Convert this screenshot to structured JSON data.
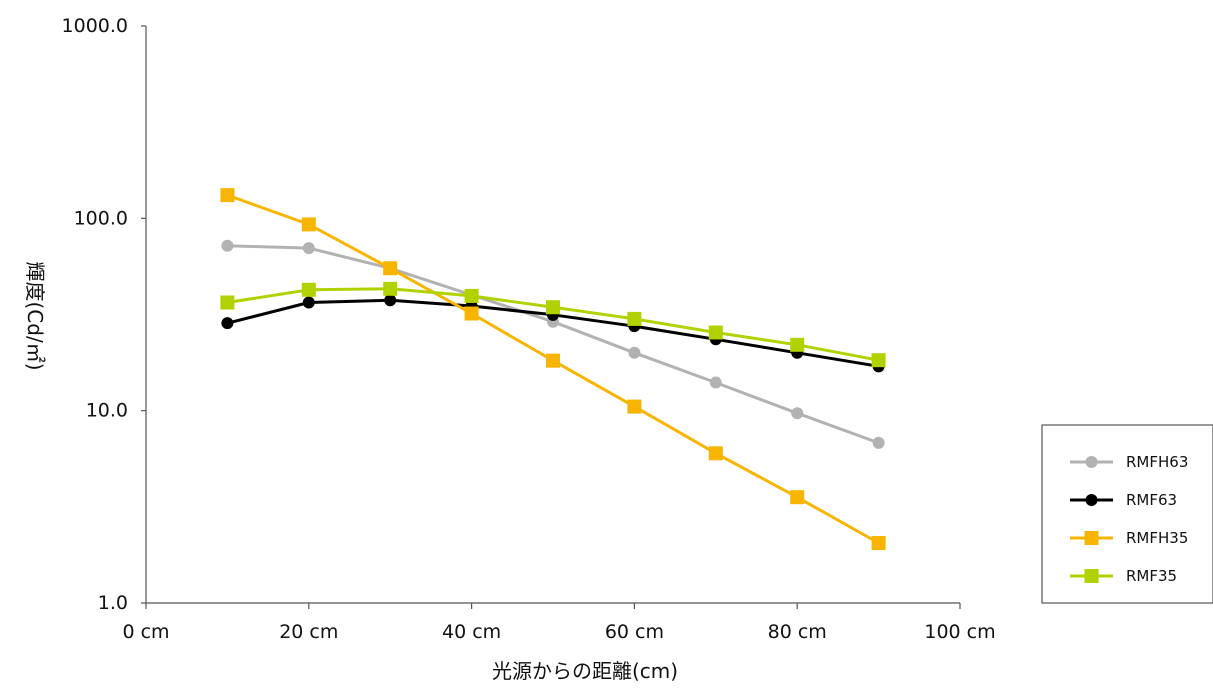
{
  "chart_data": {
    "type": "line",
    "title": "",
    "xlabel": "光源からの距離(cm)",
    "ylabel": "輝度(Cd/㎡)",
    "xlim": [
      0,
      100
    ],
    "ylim": [
      1,
      1000
    ],
    "y_scale": "log",
    "x_ticks": [
      "0 cm",
      "20 cm",
      "40 cm",
      "60 cm",
      "80 cm",
      "100 cm"
    ],
    "x_tick_values": [
      0,
      20,
      40,
      60,
      80,
      100
    ],
    "y_ticks": [
      "1.0",
      "10.0",
      "100.0",
      "1000.0"
    ],
    "y_tick_values": [
      1,
      10,
      100,
      1000
    ],
    "grid": false,
    "legend_position": "right",
    "x": [
      10,
      20,
      30,
      40,
      50,
      60,
      70,
      80,
      90
    ],
    "series": [
      {
        "name": "RMFH63",
        "color": "#b2b2b2",
        "marker": "circle",
        "values": [
          72,
          70,
          55,
          40,
          29,
          20,
          14,
          9.7,
          6.8
        ]
      },
      {
        "name": "RMF63",
        "color": "#000000",
        "marker": "circle",
        "values": [
          28.5,
          36.5,
          37.5,
          35,
          31.5,
          27.5,
          23.5,
          20,
          17
        ]
      },
      {
        "name": "RMFH35",
        "color": "#f7b500",
        "marker": "square",
        "values": [
          132,
          93,
          55,
          32,
          18.2,
          10.5,
          6,
          3.55,
          2.05
        ]
      },
      {
        "name": "RMF35",
        "color": "#b2d200",
        "marker": "square",
        "values": [
          36.5,
          42.5,
          43,
          39.5,
          34.5,
          30,
          25.5,
          22,
          18.3
        ]
      }
    ]
  }
}
